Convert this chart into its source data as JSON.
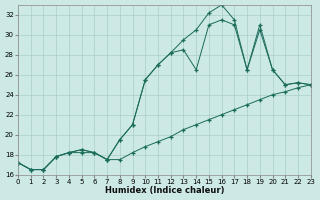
{
  "xlabel": "Humidex (Indice chaleur)",
  "bg_color": "#cce9e5",
  "line_color": "#1a6b5a",
  "grid_color": "#aaceca",
  "xlim": [
    0,
    23
  ],
  "ylim": [
    16,
    33
  ],
  "yticks": [
    16,
    18,
    20,
    22,
    24,
    26,
    28,
    30,
    32
  ],
  "xticks": [
    0,
    1,
    2,
    3,
    4,
    5,
    6,
    7,
    8,
    9,
    10,
    11,
    12,
    13,
    14,
    15,
    16,
    17,
    18,
    19,
    20,
    21,
    22,
    23
  ],
  "line_min_x": [
    0,
    1,
    2,
    3,
    4,
    5,
    6,
    7,
    8,
    9,
    10,
    11,
    12,
    13,
    14,
    15,
    16,
    17,
    18,
    19,
    20,
    21,
    22,
    23
  ],
  "line_min_y": [
    17.2,
    16.5,
    16.5,
    17.8,
    18.2,
    18.2,
    18.2,
    17.5,
    17.5,
    18.2,
    18.8,
    19.3,
    19.8,
    20.5,
    21.0,
    21.5,
    22.0,
    22.5,
    23.0,
    23.5,
    24.0,
    24.3,
    24.7,
    25.0
  ],
  "line_max_x": [
    0,
    1,
    2,
    3,
    4,
    5,
    6,
    7,
    8,
    9,
    10,
    11,
    12,
    13,
    14,
    15,
    16,
    17,
    18,
    19,
    20,
    21,
    22,
    23
  ],
  "line_max_y": [
    17.2,
    16.5,
    16.5,
    17.8,
    18.2,
    18.5,
    18.2,
    17.5,
    19.5,
    21.0,
    25.5,
    27.0,
    28.2,
    29.5,
    30.5,
    32.2,
    33.0,
    31.5,
    26.5,
    31.0,
    26.5,
    25.0,
    25.2,
    25.0
  ],
  "line_mean_x": [
    0,
    1,
    2,
    3,
    4,
    5,
    6,
    7,
    8,
    9,
    10,
    11,
    12,
    13,
    14,
    15,
    16,
    17,
    18,
    19,
    20,
    21,
    22,
    23
  ],
  "line_mean_y": [
    17.2,
    16.5,
    16.5,
    17.8,
    18.2,
    18.5,
    18.2,
    17.5,
    19.5,
    21.0,
    25.5,
    27.0,
    28.2,
    28.5,
    26.5,
    31.0,
    31.5,
    31.0,
    26.5,
    30.5,
    26.5,
    25.0,
    25.2,
    25.0
  ]
}
